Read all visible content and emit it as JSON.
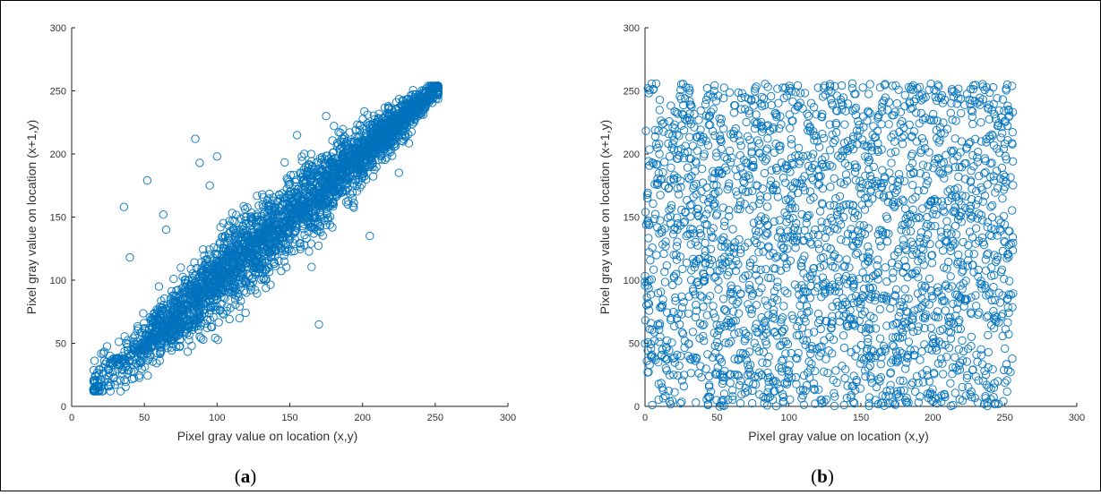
{
  "figure": {
    "panel_a_label": "a",
    "panel_b_label": "b"
  },
  "chart_data": [
    {
      "type": "scatter",
      "panel": "a",
      "xlabel": "Pixel gray value on location (x,y)",
      "ylabel": "Pixel gray value on location (x+1,y)",
      "xlim": [
        0,
        300
      ],
      "ylim": [
        0,
        300
      ],
      "xticks": [
        0,
        50,
        100,
        150,
        200,
        250,
        300
      ],
      "yticks": [
        0,
        50,
        100,
        150,
        200,
        250,
        300
      ],
      "marker": "open-circle",
      "color": "#0072BD",
      "grid": false,
      "distribution": "strongly correlated along diagonal y≈x, approx range 15–252",
      "points": [
        [
          15,
          13
        ],
        [
          18,
          16
        ],
        [
          25,
          30
        ],
        [
          30,
          35
        ],
        [
          36,
          158
        ],
        [
          40,
          118
        ],
        [
          45,
          60
        ],
        [
          50,
          62
        ],
        [
          52,
          179
        ],
        [
          55,
          70
        ],
        [
          60,
          95
        ],
        [
          63,
          152
        ],
        [
          65,
          140
        ],
        [
          70,
          82
        ],
        [
          75,
          110
        ],
        [
          80,
          100
        ],
        [
          85,
          212
        ],
        [
          88,
          193
        ],
        [
          95,
          175
        ],
        [
          100,
          198
        ],
        [
          105,
          130
        ],
        [
          110,
          120
        ],
        [
          115,
          140
        ],
        [
          120,
          150
        ],
        [
          125,
          135
        ],
        [
          130,
          110
        ],
        [
          140,
          155
        ],
        [
          145,
          160
        ],
        [
          150,
          170
        ],
        [
          155,
          215
        ],
        [
          160,
          200
        ],
        [
          165,
          180
        ],
        [
          170,
          65
        ],
        [
          175,
          230
        ],
        [
          180,
          190
        ],
        [
          185,
          210
        ],
        [
          190,
          160
        ],
        [
          195,
          180
        ],
        [
          200,
          210
        ],
        [
          205,
          135
        ],
        [
          210,
          225
        ],
        [
          220,
          235
        ],
        [
          225,
          185
        ],
        [
          230,
          235
        ],
        [
          240,
          245
        ],
        [
          252,
          252
        ]
      ]
    },
    {
      "type": "scatter",
      "panel": "b",
      "xlabel": "Pixel gray value on location (x,y)",
      "ylabel": "Pixel gray value on location (x+1,y)",
      "xlim": [
        0,
        300
      ],
      "ylim": [
        0,
        300
      ],
      "xticks": [
        0,
        50,
        100,
        150,
        200,
        250,
        300
      ],
      "yticks": [
        0,
        50,
        100,
        150,
        200,
        250,
        300
      ],
      "marker": "open-circle",
      "color": "#0072BD",
      "grid": false,
      "distribution": "uniformly distributed over [0,255]×[0,255]",
      "points": [
        [
          2,
          252
        ],
        [
          10,
          200
        ],
        [
          20,
          120
        ],
        [
          30,
          40
        ],
        [
          45,
          230
        ],
        [
          55,
          10
        ],
        [
          70,
          170
        ],
        [
          85,
          80
        ],
        [
          100,
          250
        ],
        [
          115,
          30
        ],
        [
          130,
          190
        ],
        [
          145,
          100
        ],
        [
          160,
          5
        ],
        [
          175,
          240
        ],
        [
          190,
          150
        ],
        [
          205,
          60
        ],
        [
          220,
          210
        ],
        [
          235,
          20
        ],
        [
          250,
          130
        ],
        [
          255,
          254
        ]
      ]
    }
  ]
}
